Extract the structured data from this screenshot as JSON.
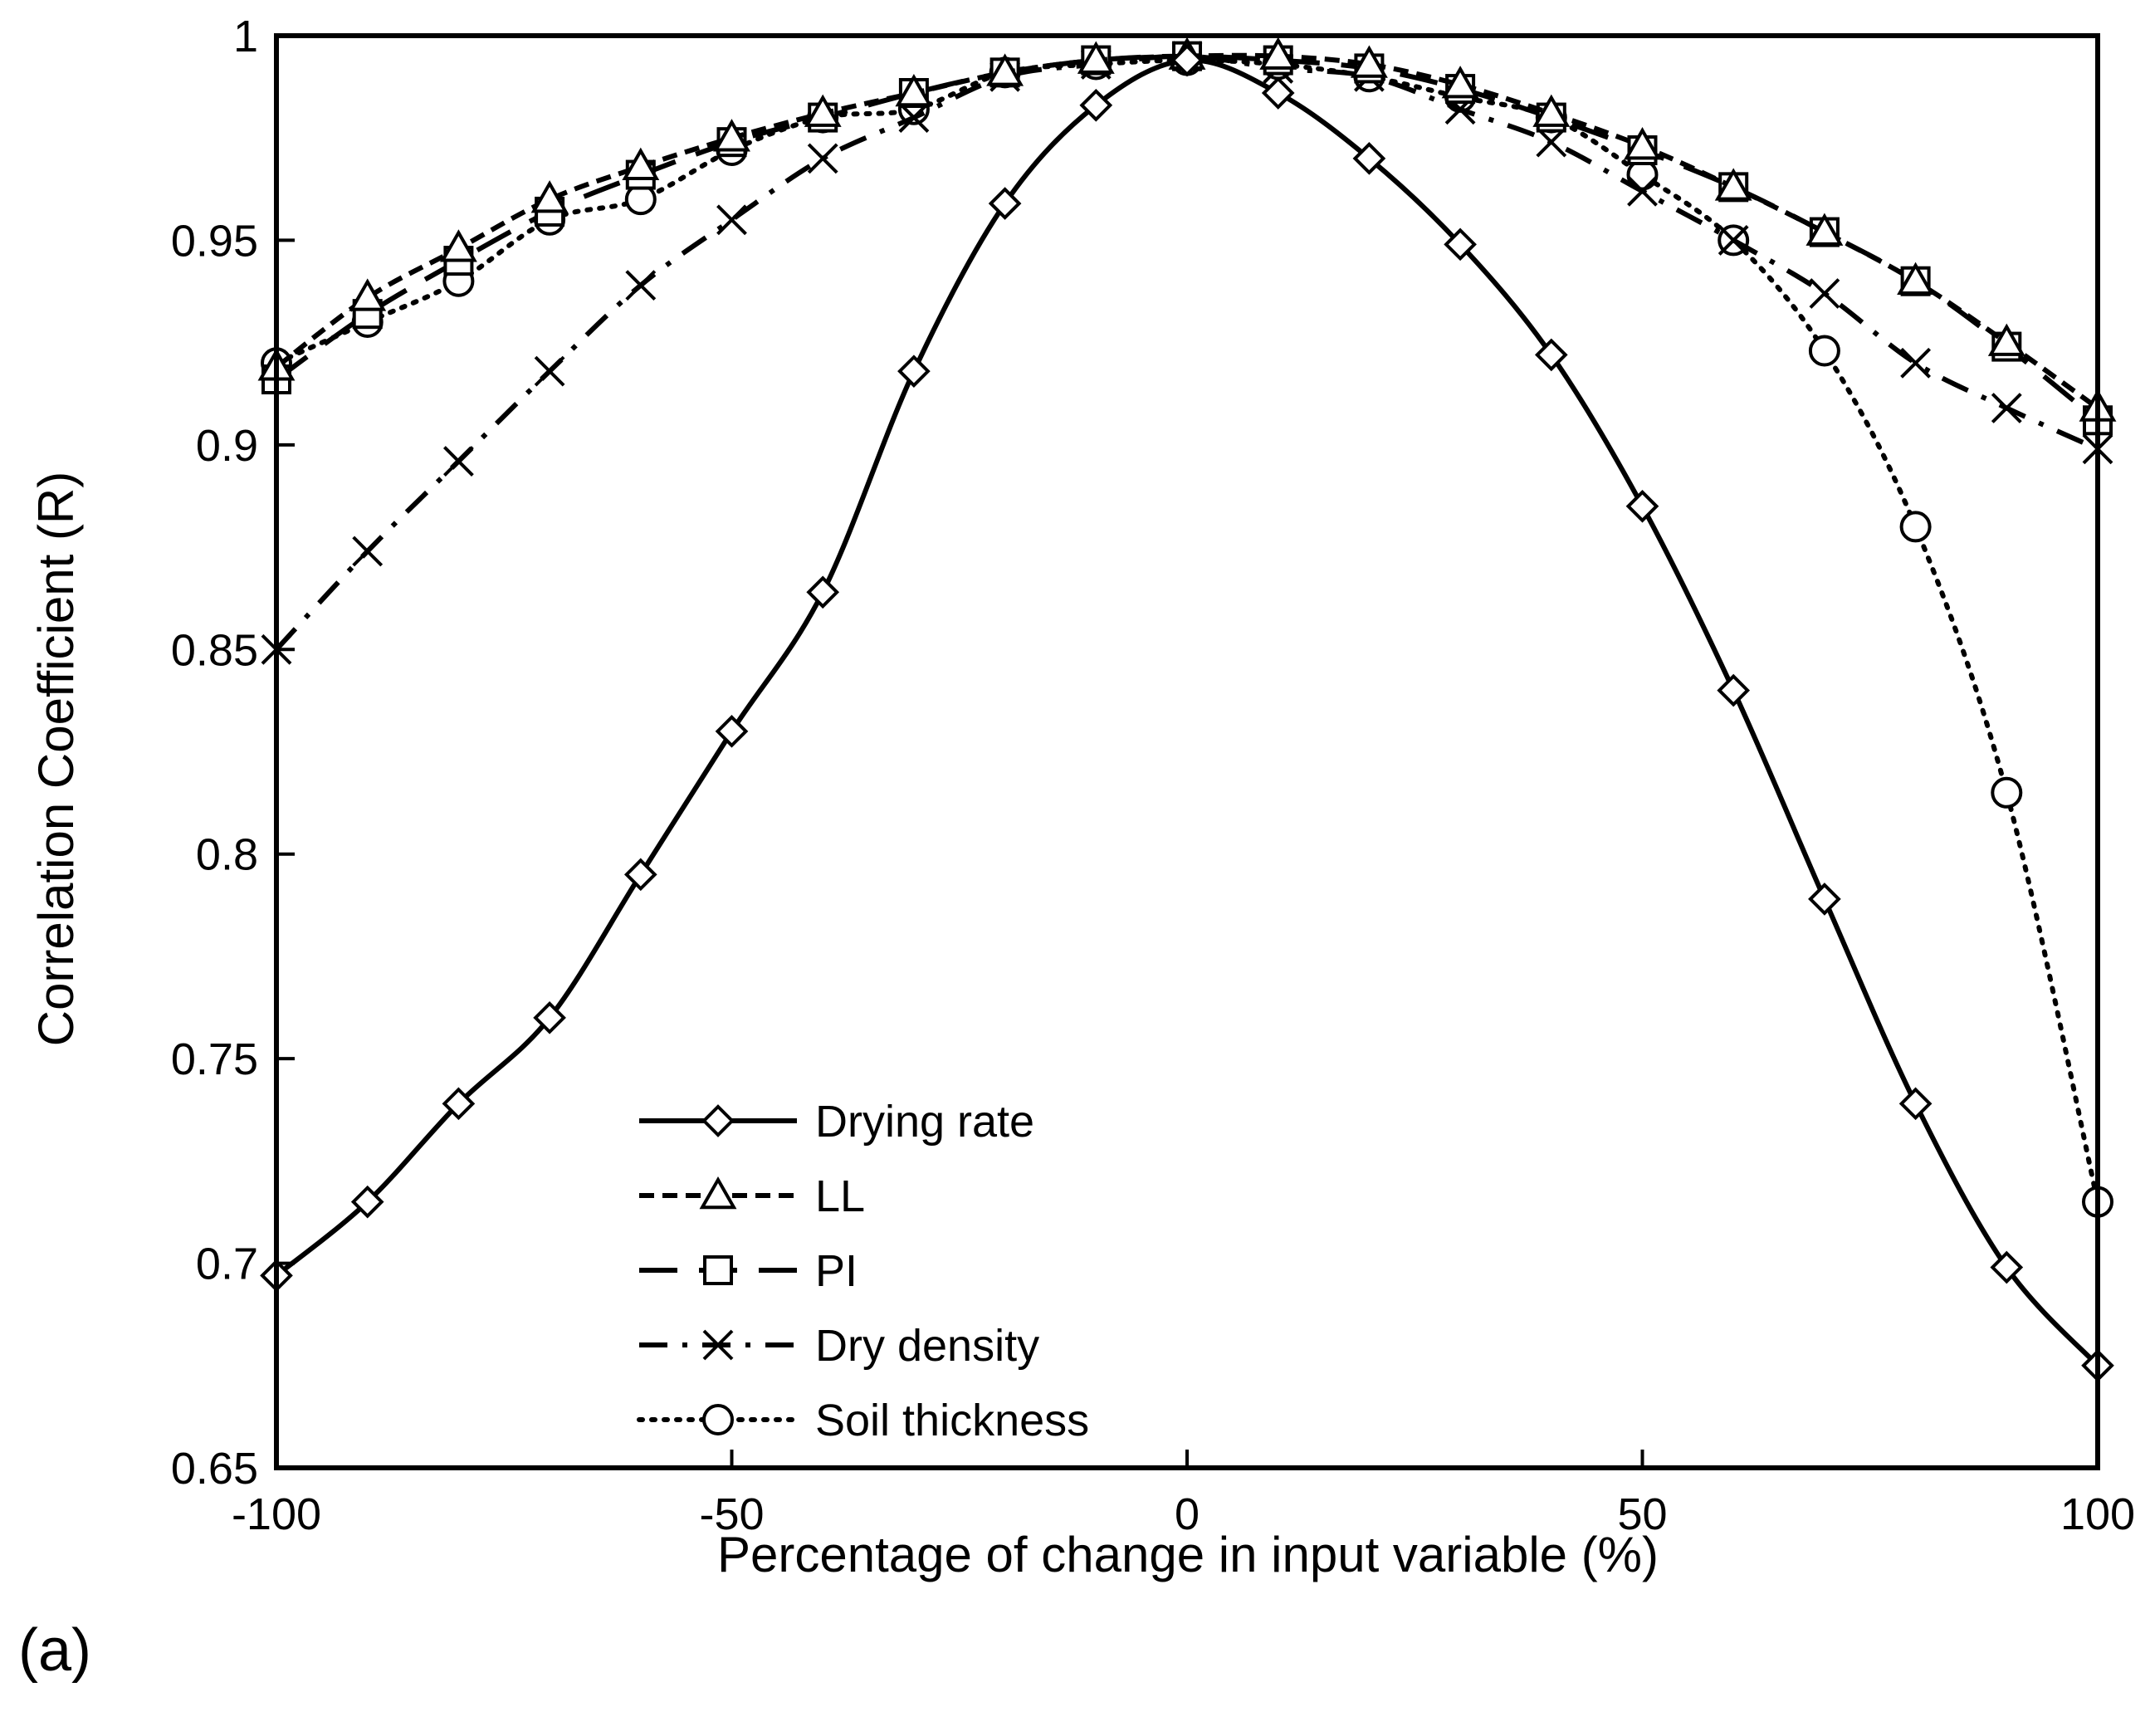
{
  "panel_label": "(a)",
  "chart_data": {
    "type": "line",
    "title": "",
    "xlabel": "Percentage of change in input variable (%)",
    "ylabel": "Correlation Coefficient (R)",
    "xlim": [
      -100,
      100
    ],
    "ylim": [
      0.65,
      1.0
    ],
    "xticks": [
      -100,
      -50,
      0,
      50,
      100
    ],
    "yticks": [
      0.65,
      0.7,
      0.75,
      0.8,
      0.85,
      0.9,
      0.95,
      1.0
    ],
    "xtick_labels": [
      "-100",
      "-50",
      "0",
      "50",
      "100"
    ],
    "ytick_labels": [
      "0.65",
      "0.7",
      "0.75",
      "0.8",
      "0.85",
      "0.9",
      "0.95",
      "1"
    ],
    "grid": false,
    "legend_position": "lower-center",
    "x": [
      -100,
      -90,
      -80,
      -70,
      -60,
      -50,
      -40,
      -30,
      -20,
      -10,
      0,
      10,
      20,
      30,
      40,
      50,
      60,
      70,
      80,
      90,
      100
    ],
    "series": [
      {
        "name": "Drying rate",
        "line_style": "solid",
        "marker": "diamond",
        "values": [
          0.697,
          0.715,
          0.739,
          0.76,
          0.795,
          0.83,
          0.864,
          0.918,
          0.959,
          0.983,
          0.994,
          0.986,
          0.97,
          0.949,
          0.922,
          0.885,
          0.84,
          0.789,
          0.739,
          0.699,
          0.675
        ]
      },
      {
        "name": "LL",
        "line_style": "short-dash",
        "marker": "triangle",
        "values": [
          0.919,
          0.936,
          0.948,
          0.96,
          0.968,
          0.975,
          0.981,
          0.986,
          0.991,
          0.994,
          0.995,
          0.995,
          0.993,
          0.988,
          0.981,
          0.973,
          0.963,
          0.952,
          0.94,
          0.925,
          0.909
        ]
      },
      {
        "name": "PI",
        "line_style": "long-dash",
        "marker": "square",
        "values": [
          0.916,
          0.932,
          0.945,
          0.957,
          0.966,
          0.974,
          0.98,
          0.986,
          0.991,
          0.994,
          0.995,
          0.994,
          0.992,
          0.987,
          0.98,
          0.972,
          0.963,
          0.952,
          0.94,
          0.924,
          0.906
        ]
      },
      {
        "name": "Dry density",
        "line_style": "dash-dot",
        "marker": "x",
        "values": [
          0.85,
          0.874,
          0.896,
          0.918,
          0.939,
          0.955,
          0.97,
          0.98,
          0.99,
          0.993,
          0.995,
          0.992,
          0.99,
          0.982,
          0.974,
          0.962,
          0.95,
          0.937,
          0.92,
          0.909,
          0.899
        ]
      },
      {
        "name": "Soil thickness",
        "line_style": "dotted",
        "marker": "circle",
        "values": [
          0.92,
          0.93,
          0.94,
          0.955,
          0.96,
          0.972,
          0.98,
          0.982,
          0.991,
          0.993,
          0.994,
          0.993,
          0.99,
          0.985,
          0.98,
          0.966,
          0.95,
          0.923,
          0.88,
          0.815,
          0.715
        ]
      }
    ]
  }
}
